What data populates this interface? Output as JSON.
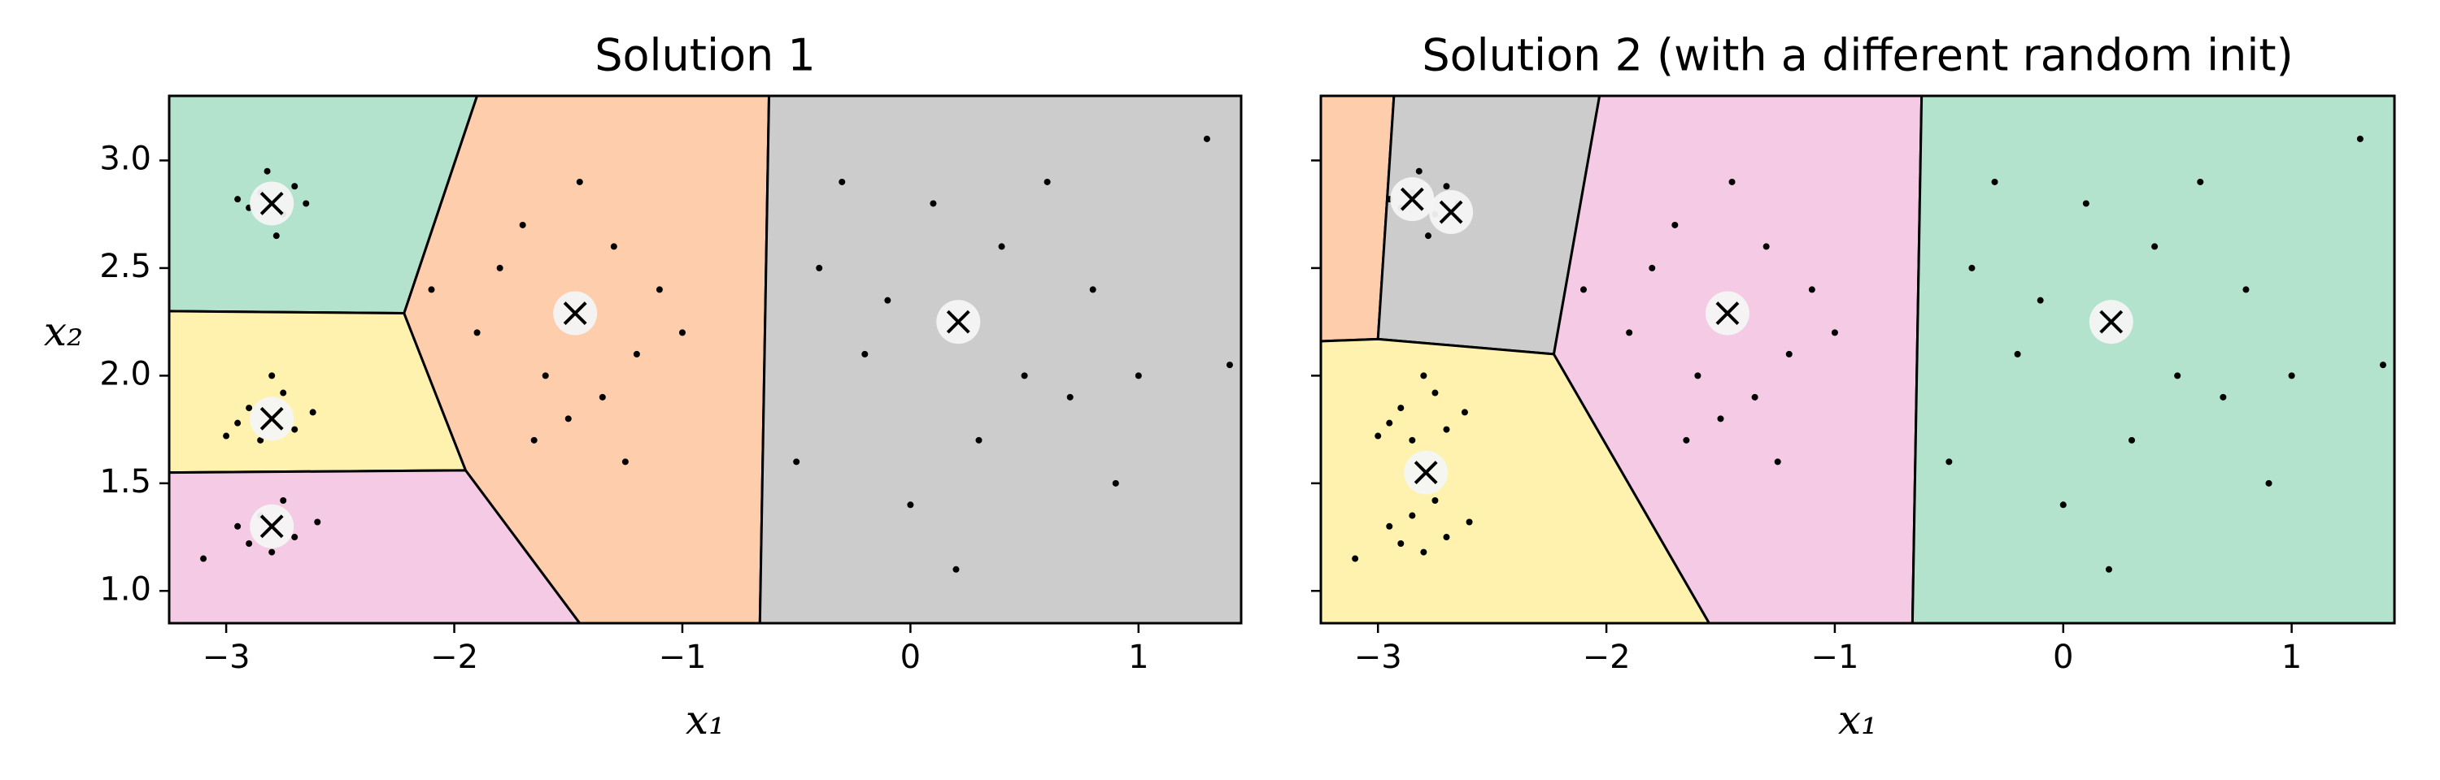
{
  "chart_data": [
    {
      "type": "scatter",
      "title": "Solution 1",
      "xlabel": "x₁",
      "ylabel": "x₂",
      "xlim": [
        -3.25,
        1.45
      ],
      "ylim": [
        0.85,
        3.3
      ],
      "xticks": [
        {
          "value": -3,
          "label": "−3"
        },
        {
          "value": -2,
          "label": "−2"
        },
        {
          "value": -1,
          "label": "−1"
        },
        0,
        1
      ],
      "yticks": [
        {
          "value": 1,
          "label": "1.0"
        },
        1.5,
        {
          "value": 2,
          "label": "2.0"
        },
        2.5,
        {
          "value": 3,
          "label": "3.0"
        }
      ],
      "show_ytick_labels": true,
      "regions": [
        {
          "color": "#b3e2cd",
          "x": [
            -3.25,
            -1.9,
            -2.22,
            -3.25
          ],
          "y": [
            3.3,
            3.3,
            2.29,
            2.3
          ]
        },
        {
          "color": "#fff2ae",
          "x": [
            -3.25,
            -2.22,
            -1.95,
            -3.25
          ],
          "y": [
            2.3,
            2.29,
            1.56,
            1.55
          ]
        },
        {
          "color": "#f4cae4",
          "x": [
            -3.25,
            -1.95,
            -1.45,
            -3.25
          ],
          "y": [
            1.55,
            1.56,
            0.85,
            0.85
          ]
        },
        {
          "color": "#fdcdac",
          "x": [
            -1.9,
            -0.62,
            -0.66,
            -1.45,
            -1.95,
            -2.22
          ],
          "y": [
            3.3,
            3.3,
            0.85,
            0.85,
            1.56,
            2.29
          ]
        },
        {
          "color": "#cccccc",
          "x": [
            -0.62,
            1.45,
            1.45,
            -0.66
          ],
          "y": [
            3.3,
            3.3,
            0.85,
            0.85
          ]
        }
      ],
      "points": {
        "color": "#000000",
        "x": [
          -2.85,
          -2.75,
          -2.9,
          -2.7,
          -2.82,
          -2.78,
          -2.95,
          -2.65,
          -2.9,
          -2.7,
          -2.85,
          -2.75,
          -2.95,
          -2.62,
          -2.8,
          -3.0,
          -2.85,
          -2.7,
          -2.95,
          -2.75,
          -2.6,
          -3.1,
          -2.8,
          -2.9,
          -1.8,
          -1.2,
          -1.6,
          -1.3,
          -1.5,
          -1.9,
          -1.1,
          -1.7,
          -1.35,
          -1.0,
          -2.1,
          -1.45,
          -1.25,
          -1.65,
          -0.4,
          0.5,
          0.1,
          0.3,
          -0.2,
          0.8,
          -0.5,
          0.6,
          0.0,
          1.0,
          0.4,
          -0.3,
          0.9,
          1.3,
          0.2,
          1.4,
          -0.1,
          0.7
        ],
        "y": [
          2.85,
          2.75,
          2.78,
          2.88,
          2.95,
          2.65,
          2.82,
          2.8,
          1.85,
          1.75,
          1.7,
          1.92,
          1.78,
          1.83,
          2.0,
          1.72,
          1.35,
          1.25,
          1.3,
          1.42,
          1.32,
          1.15,
          1.18,
          1.22,
          2.5,
          2.1,
          2.0,
          2.6,
          1.8,
          2.2,
          2.4,
          2.7,
          1.9,
          2.2,
          2.4,
          2.9,
          1.6,
          1.7,
          2.5,
          2.0,
          2.8,
          1.7,
          2.1,
          2.4,
          1.6,
          2.9,
          1.4,
          2.0,
          2.6,
          2.9,
          1.5,
          3.1,
          1.1,
          2.05,
          2.35,
          1.9
        ]
      },
      "centroids": {
        "x": [
          -2.8,
          -2.8,
          -2.8,
          -1.47,
          0.21
        ],
        "y": [
          2.8,
          1.8,
          1.3,
          2.29,
          2.25
        ]
      }
    },
    {
      "type": "scatter",
      "title": "Solution 2 (with a different random init)",
      "xlabel": "x₁",
      "xlim": [
        -3.25,
        1.45
      ],
      "ylim": [
        0.85,
        3.3
      ],
      "xticks": [
        {
          "value": -3,
          "label": "−3"
        },
        {
          "value": -2,
          "label": "−2"
        },
        {
          "value": -1,
          "label": "−1"
        },
        0,
        1
      ],
      "yticks": [
        1,
        1.5,
        2,
        2.5,
        3
      ],
      "show_ytick_labels": false,
      "regions": [
        {
          "color": "#fdcdac",
          "x": [
            -3.25,
            -2.93,
            -3.0,
            -3.25
          ],
          "y": [
            3.3,
            3.3,
            2.17,
            2.16
          ]
        },
        {
          "color": "#cccccc",
          "x": [
            -2.93,
            -2.03,
            -2.23,
            -3.0
          ],
          "y": [
            3.3,
            3.3,
            2.1,
            2.17
          ]
        },
        {
          "color": "#fff2ae",
          "x": [
            -3.25,
            -3.0,
            -2.23,
            -1.55,
            -3.25
          ],
          "y": [
            2.16,
            2.17,
            2.1,
            0.85,
            0.85
          ]
        },
        {
          "color": "#f4cae4",
          "x": [
            -2.03,
            -0.62,
            -0.66,
            -1.55,
            -2.23
          ],
          "y": [
            3.3,
            3.3,
            0.85,
            0.85,
            2.1
          ]
        },
        {
          "color": "#b3e2cd",
          "x": [
            -0.62,
            1.45,
            1.45,
            -0.66
          ],
          "y": [
            3.3,
            3.3,
            0.85,
            0.85
          ]
        }
      ],
      "points": {
        "color": "#000000",
        "x": [
          -2.85,
          -2.75,
          -2.9,
          -2.7,
          -2.82,
          -2.78,
          -2.95,
          -2.65,
          -2.9,
          -2.7,
          -2.85,
          -2.75,
          -2.95,
          -2.62,
          -2.8,
          -3.0,
          -2.85,
          -2.7,
          -2.95,
          -2.75,
          -2.6,
          -3.1,
          -2.8,
          -2.9,
          -1.8,
          -1.2,
          -1.6,
          -1.3,
          -1.5,
          -1.9,
          -1.1,
          -1.7,
          -1.35,
          -1.0,
          -2.1,
          -1.45,
          -1.25,
          -1.65,
          -0.4,
          0.5,
          0.1,
          0.3,
          -0.2,
          0.8,
          -0.5,
          0.6,
          0.0,
          1.0,
          0.4,
          -0.3,
          0.9,
          1.3,
          0.2,
          1.4,
          -0.1,
          0.7
        ],
        "y": [
          2.85,
          2.75,
          2.78,
          2.88,
          2.95,
          2.65,
          2.82,
          2.8,
          1.85,
          1.75,
          1.7,
          1.92,
          1.78,
          1.83,
          2.0,
          1.72,
          1.35,
          1.25,
          1.3,
          1.42,
          1.32,
          1.15,
          1.18,
          1.22,
          2.5,
          2.1,
          2.0,
          2.6,
          1.8,
          2.2,
          2.4,
          2.7,
          1.9,
          2.2,
          2.4,
          2.9,
          1.6,
          1.7,
          2.5,
          2.0,
          2.8,
          1.7,
          2.1,
          2.4,
          1.6,
          2.9,
          1.4,
          2.0,
          2.6,
          2.9,
          1.5,
          3.1,
          1.1,
          2.05,
          2.35,
          1.9
        ]
      },
      "centroids": {
        "x": [
          -2.85,
          -2.68,
          -2.79,
          -1.47,
          0.21
        ],
        "y": [
          2.82,
          2.76,
          1.55,
          2.29,
          2.25
        ]
      }
    }
  ]
}
